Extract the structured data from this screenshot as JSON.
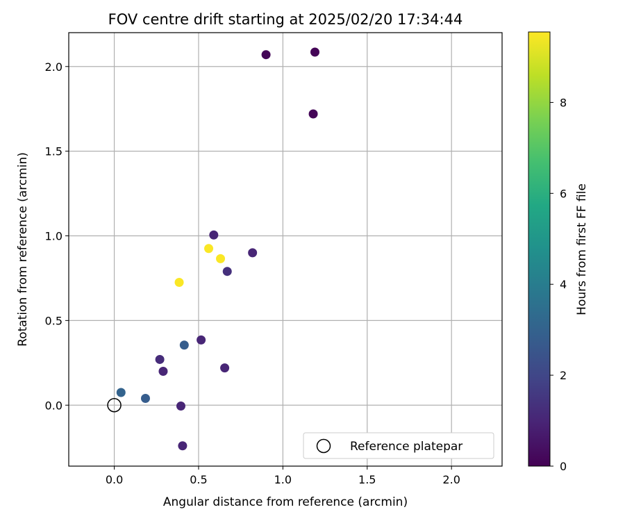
{
  "chart_data": {
    "type": "scatter",
    "title": "FOV centre drift starting at 2025/02/20 17:34:44",
    "xlabel": "Angular distance from reference (arcmin)",
    "ylabel": "Rotation from reference (arcmin)",
    "xlim": [
      -0.27,
      2.3
    ],
    "ylim": [
      -0.36,
      2.2
    ],
    "xticks": [
      0.0,
      0.5,
      1.0,
      1.5,
      2.0
    ],
    "xtick_labels": [
      "0.0",
      "0.5",
      "1.0",
      "1.5",
      "2.0"
    ],
    "yticks": [
      0.0,
      0.5,
      1.0,
      1.5,
      2.0
    ],
    "ytick_labels": [
      "0.0",
      "0.5",
      "1.0",
      "1.5",
      "2.0"
    ],
    "grid": true,
    "colormap": "viridis",
    "colorbar": {
      "label": "Hours from first FF file",
      "range": [
        0,
        9.55
      ],
      "ticks": [
        0,
        2,
        4,
        6,
        8
      ],
      "tick_labels": [
        "0",
        "2",
        "4",
        "6",
        "8"
      ]
    },
    "points": [
      {
        "x": 0.9,
        "y": 2.07,
        "hours": 0.1
      },
      {
        "x": 1.19,
        "y": 2.085,
        "hours": 0.1
      },
      {
        "x": 1.18,
        "y": 1.72,
        "hours": 0.1
      },
      {
        "x": 0.59,
        "y": 1.005,
        "hours": 1.0
      },
      {
        "x": 0.82,
        "y": 0.9,
        "hours": 1.0
      },
      {
        "x": 0.67,
        "y": 0.79,
        "hours": 1.3
      },
      {
        "x": 0.56,
        "y": 0.925,
        "hours": 9.5
      },
      {
        "x": 0.63,
        "y": 0.865,
        "hours": 9.5
      },
      {
        "x": 0.385,
        "y": 0.725,
        "hours": 9.5
      },
      {
        "x": 0.415,
        "y": 0.355,
        "hours": 2.8
      },
      {
        "x": 0.515,
        "y": 0.385,
        "hours": 1.0
      },
      {
        "x": 0.27,
        "y": 0.27,
        "hours": 1.2
      },
      {
        "x": 0.29,
        "y": 0.2,
        "hours": 1.0
      },
      {
        "x": 0.655,
        "y": 0.22,
        "hours": 1.0
      },
      {
        "x": 0.04,
        "y": 0.075,
        "hours": 3.0
      },
      {
        "x": 0.185,
        "y": 0.04,
        "hours": 2.8
      },
      {
        "x": 0.395,
        "y": -0.005,
        "hours": 1.0
      },
      {
        "x": 0.405,
        "y": -0.24,
        "hours": 1.0
      }
    ],
    "reference_point": {
      "x": 0.0,
      "y": 0.0
    },
    "legend": {
      "position": "lower-right",
      "entries": [
        "Reference platepar"
      ]
    }
  }
}
